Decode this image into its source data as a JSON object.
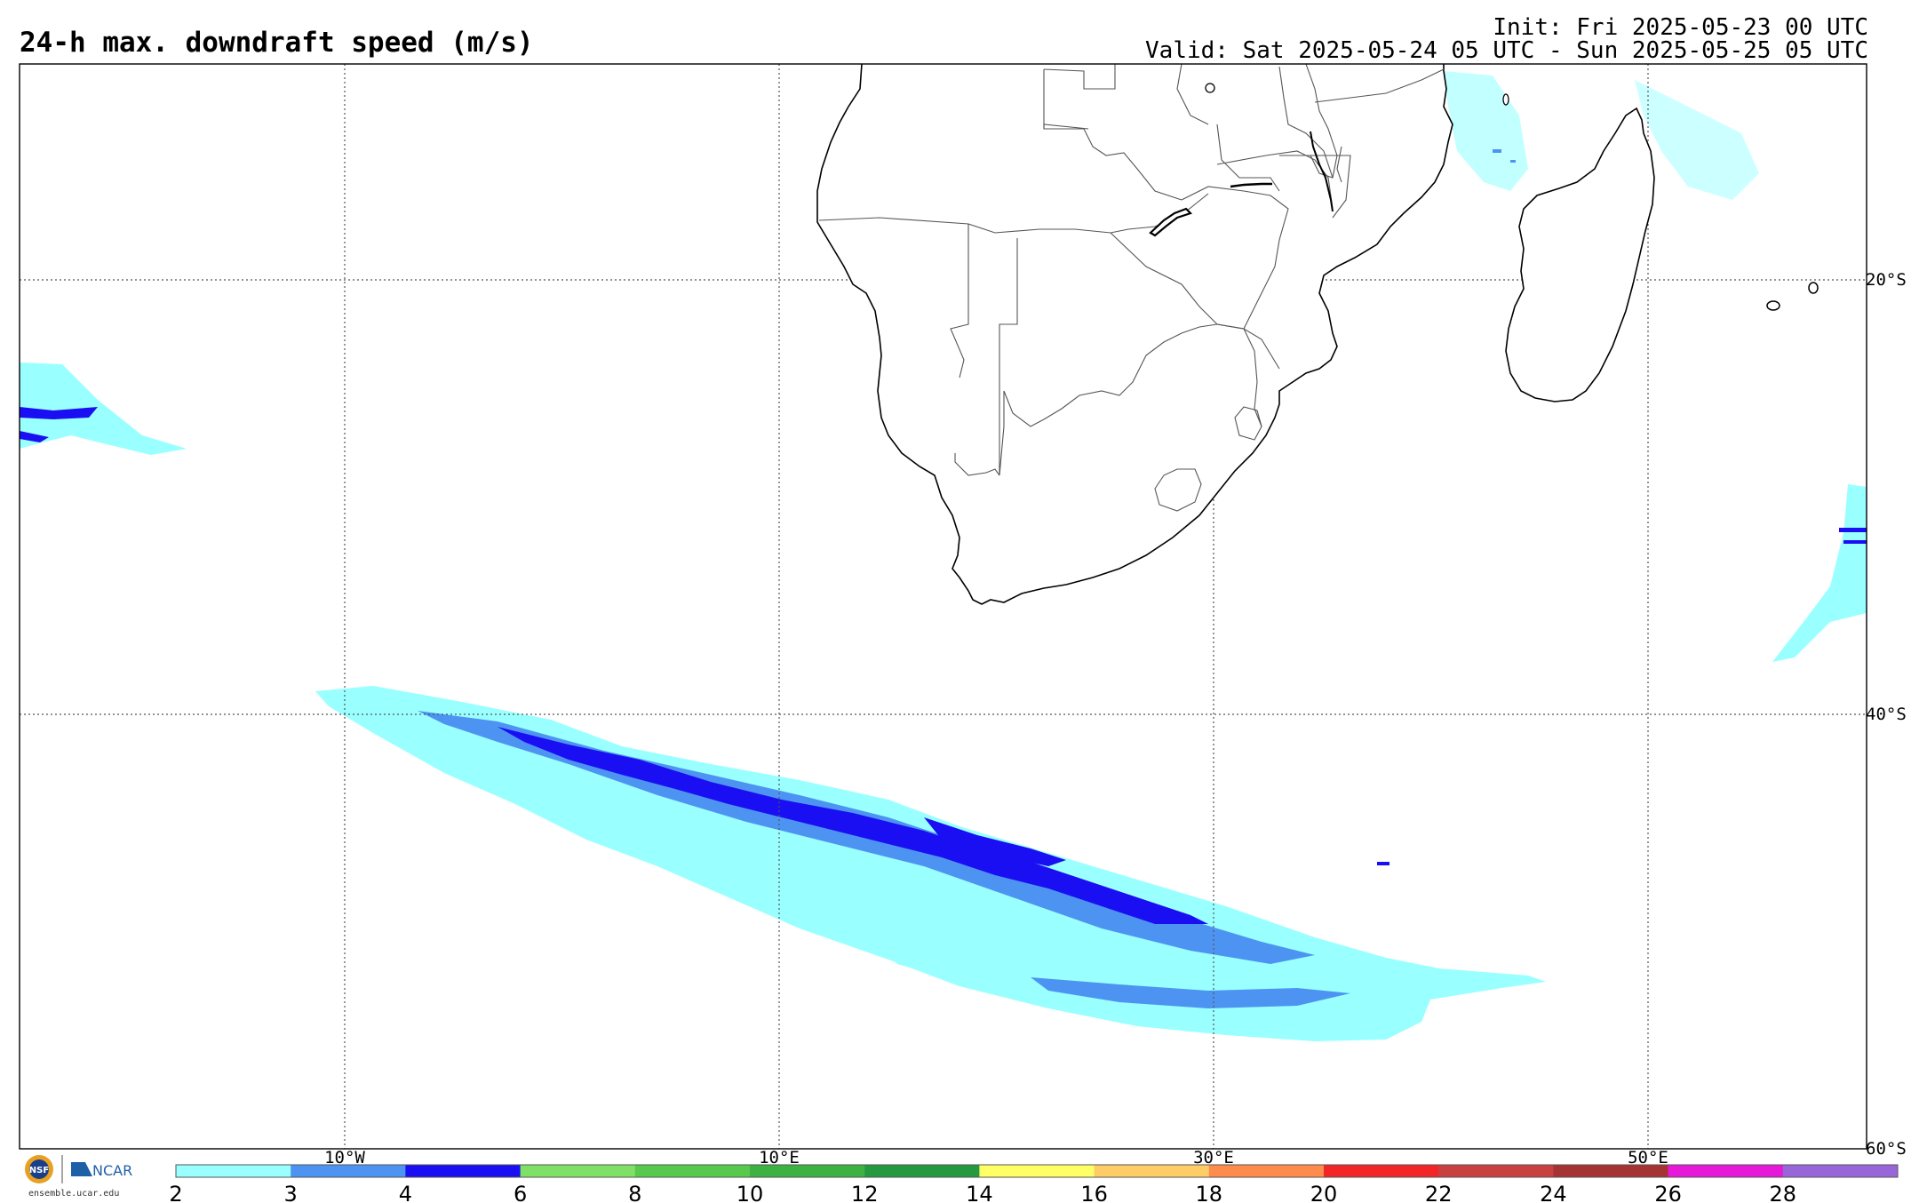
{
  "header": {
    "title": "24-h max. downdraft speed (m/s)",
    "init": "Init: Fri 2025-05-23 00 UTC",
    "valid": "Valid: Sat 2025-05-24 05 UTC - Sun 2025-05-25 05 UTC"
  },
  "map": {
    "lon_labels": [
      "10°W",
      "10°E",
      "30°E",
      "50°E"
    ],
    "lat_labels": [
      "20°S",
      "40°S",
      "60°S"
    ],
    "grid": true,
    "coast_color": "#000000",
    "border_color": "#555555"
  },
  "colorbar": {
    "ticks": [
      "2",
      "3",
      "4",
      "6",
      "8",
      "10",
      "12",
      "14",
      "16",
      "18",
      "20",
      "22",
      "24",
      "26",
      "28"
    ],
    "colors": [
      "#99ffff",
      "#4d94f2",
      "#1a0ff2",
      "#7fe066",
      "#57c94d",
      "#3db242",
      "#259940",
      "#ffff66",
      "#ffcc66",
      "#ff8c4d",
      "#f22626",
      "#c94040",
      "#a63333",
      "#e619d9",
      "#9966d9"
    ]
  },
  "logos": {
    "nsf": "NSF",
    "ncar": "NCAR",
    "site": "ensemble.ucar.edu"
  },
  "field": {
    "units": "m/s",
    "main_band": "Southern Ocean downdraft band, 2–6 m/s"
  }
}
